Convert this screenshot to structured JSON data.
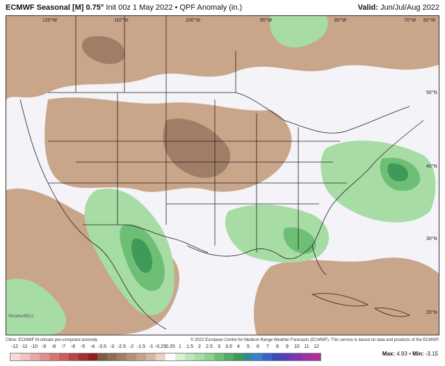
{
  "header": {
    "title": "ECMWF Seasonal [M] 0.75°",
    "subtitle": "Init 00z 1 May 2022 • QPF Anomaly (in.)",
    "valid_label": "Valid:",
    "valid_value": "Jun/Jul/Aug 2022"
  },
  "map": {
    "lon_labels": [
      "120°W",
      "110°W",
      "100°W",
      "90°W",
      "80°W",
      "70°W",
      "60°W"
    ],
    "lat_labels": [
      "50°N",
      "40°N",
      "30°N",
      "20°N"
    ],
    "colors": {
      "dry": "#c9a58a",
      "dry_dark": "#a07d66",
      "wet_light": "#a7dca5",
      "wet": "#6cbf74",
      "wet_dark": "#3f9a59",
      "background": "#f3f3f8",
      "border": "#222222"
    },
    "logo_text": "WeatherBELL"
  },
  "footer": {
    "left": "Climo: ECMWF M-climate pre-computed anomaly",
    "right": "© 2022 European Centre for Medium-Range Weather Forecasts (ECMWF). This service is based on data and products of the ECMWF."
  },
  "legend": {
    "labels": [
      "-12",
      "-11",
      "-10",
      "-9",
      "-8",
      "-7",
      "-6",
      "-5",
      "-4",
      "-3.5",
      "-3",
      "-2.5",
      "-2",
      "-1.5",
      "-1",
      "-0.25",
      "0.25",
      "1",
      "1.5",
      "2",
      "2.5",
      "3",
      "3.5",
      "4",
      "5",
      "6",
      "7",
      "8",
      "9",
      "10",
      "11",
      "12"
    ],
    "colors": [
      "#f9d9d9",
      "#f2c2c2",
      "#e8a8a8",
      "#de8f8f",
      "#d47676",
      "#c95e5e",
      "#b84545",
      "#a53030",
      "#8c1f1f",
      "#7d5a45",
      "#8f6c56",
      "#a07d66",
      "#b28f78",
      "#c4a18a",
      "#d4b6a1",
      "#e6d3c5",
      "#ffffff",
      "#d8efd6",
      "#bfe5bb",
      "#a7dca5",
      "#8fd08e",
      "#6cbf74",
      "#4fad62",
      "#3f9a59",
      "#2f8a9a",
      "#3f7fc9",
      "#3a64c9",
      "#3d49b8",
      "#5a3db8",
      "#7a37b0",
      "#9a33a8",
      "#b02f9a"
    ]
  },
  "stats": {
    "max_label": "Max:",
    "max_value": "4.93",
    "min_label": "Min:",
    "min_value": "-3.15"
  }
}
